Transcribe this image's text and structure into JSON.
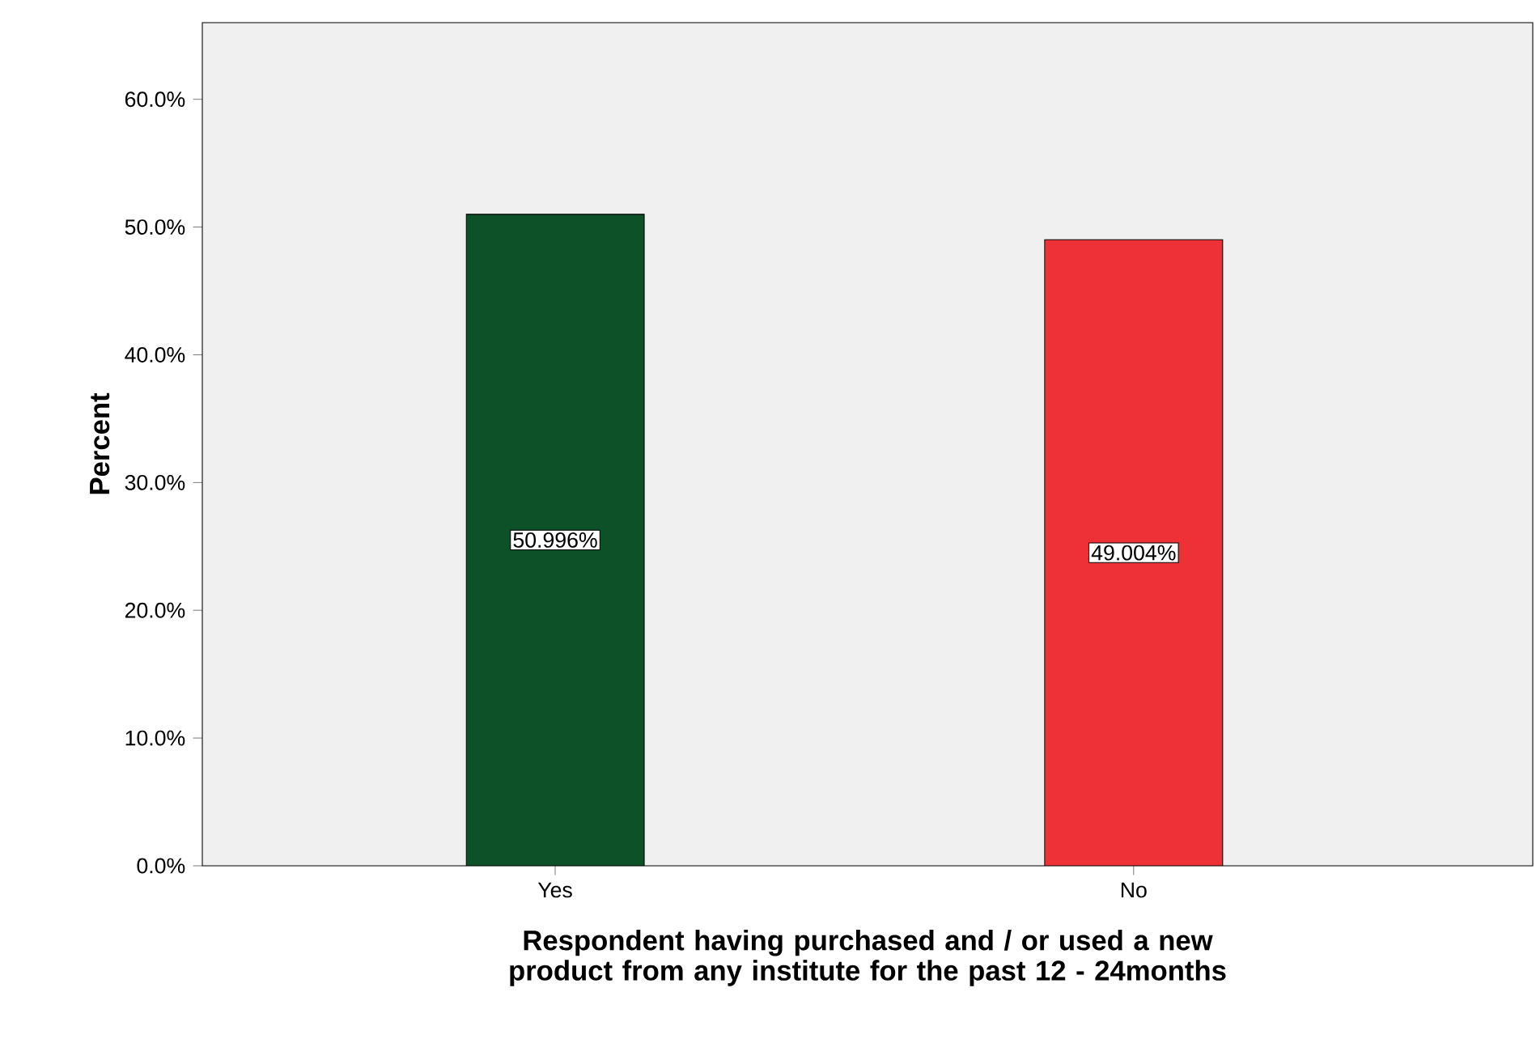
{
  "chart_data": {
    "type": "bar",
    "xlabel": "Respondent having purchased and / or used a new product from any institute for the past 12 - 24months",
    "ylabel": "Percent",
    "categories": [
      "Yes",
      "No"
    ],
    "values": [
      50.996,
      49.004
    ],
    "colors": [
      "#0d5128",
      "#ee3136"
    ],
    "value_labels": [
      "50.996%",
      "49.004%"
    ],
    "ylim": [
      0,
      66
    ],
    "yticks": [
      {
        "value": 0,
        "label": "0.0%"
      },
      {
        "value": 10,
        "label": "10.0%"
      },
      {
        "value": 20,
        "label": "20.0%"
      },
      {
        "value": 30,
        "label": "30.0%"
      },
      {
        "value": 40,
        "label": "40.0%"
      },
      {
        "value": 50,
        "label": "50.0%"
      },
      {
        "value": 60,
        "label": "60.0%"
      }
    ],
    "grid": false
  }
}
